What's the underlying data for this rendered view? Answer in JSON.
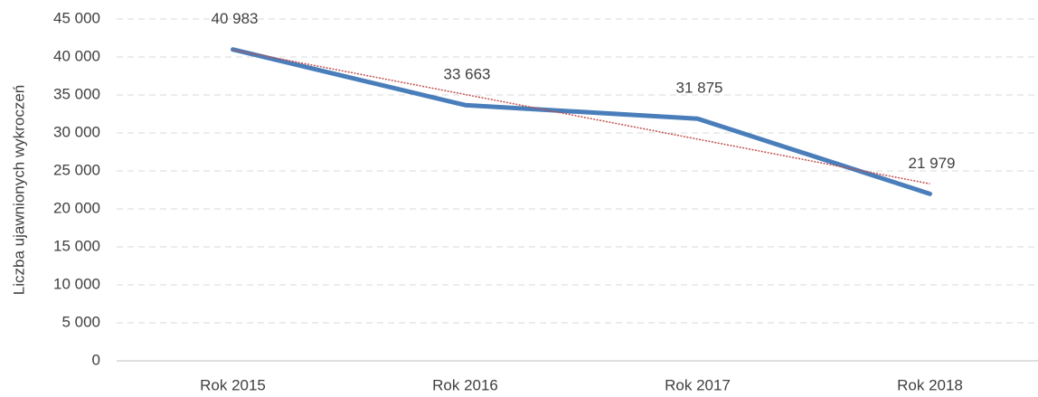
{
  "chart_data": {
    "type": "line",
    "y_label": "Liczba ujawnionych wykroczeń",
    "categories": [
      "Rok 2015",
      "Rok 2016",
      "Rok 2017",
      "Rok 2018"
    ],
    "series": [
      {
        "color": "#4a7ebb",
        "values": [
          40983,
          33663,
          31875,
          21979
        ],
        "value_labels": [
          "40 983",
          "33 663",
          "31 875",
          "21 979"
        ]
      }
    ],
    "trendline": {
      "color": "#c0504d",
      "values": [
        40945,
        35065,
        29185,
        23305
      ]
    },
    "ylim": [
      0,
      45000
    ],
    "yticks": [
      {
        "value": 0,
        "label": "0"
      },
      {
        "value": 5000,
        "label": "5 000"
      },
      {
        "value": 10000,
        "label": "10 000"
      },
      {
        "value": 15000,
        "label": "15 000"
      },
      {
        "value": 20000,
        "label": "20 000"
      },
      {
        "value": 25000,
        "label": "25 000"
      },
      {
        "value": 30000,
        "label": "30 000"
      },
      {
        "value": 35000,
        "label": "35 000"
      },
      {
        "value": 40000,
        "label": "40 000"
      },
      {
        "value": 45000,
        "label": "45 000"
      }
    ],
    "grid": true
  }
}
